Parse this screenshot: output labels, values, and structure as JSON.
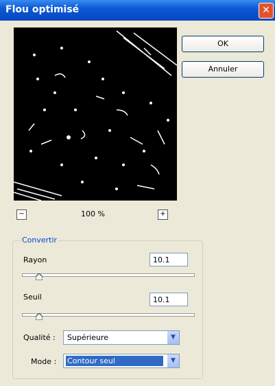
{
  "dialog": {
    "title": "Flou optimisé",
    "buttons": {
      "ok": "OK",
      "cancel": "Annuler"
    },
    "zoom": "100 %",
    "group": {
      "title": "Convertir",
      "radius": {
        "label": "Rayon",
        "value": "10.1"
      },
      "threshold": {
        "label": "Seuil",
        "value": "10.1"
      },
      "quality": {
        "label": "Qualité :",
        "value": "Supérieure"
      },
      "mode": {
        "label": "Mode :",
        "value": "Contour seul"
      }
    }
  }
}
